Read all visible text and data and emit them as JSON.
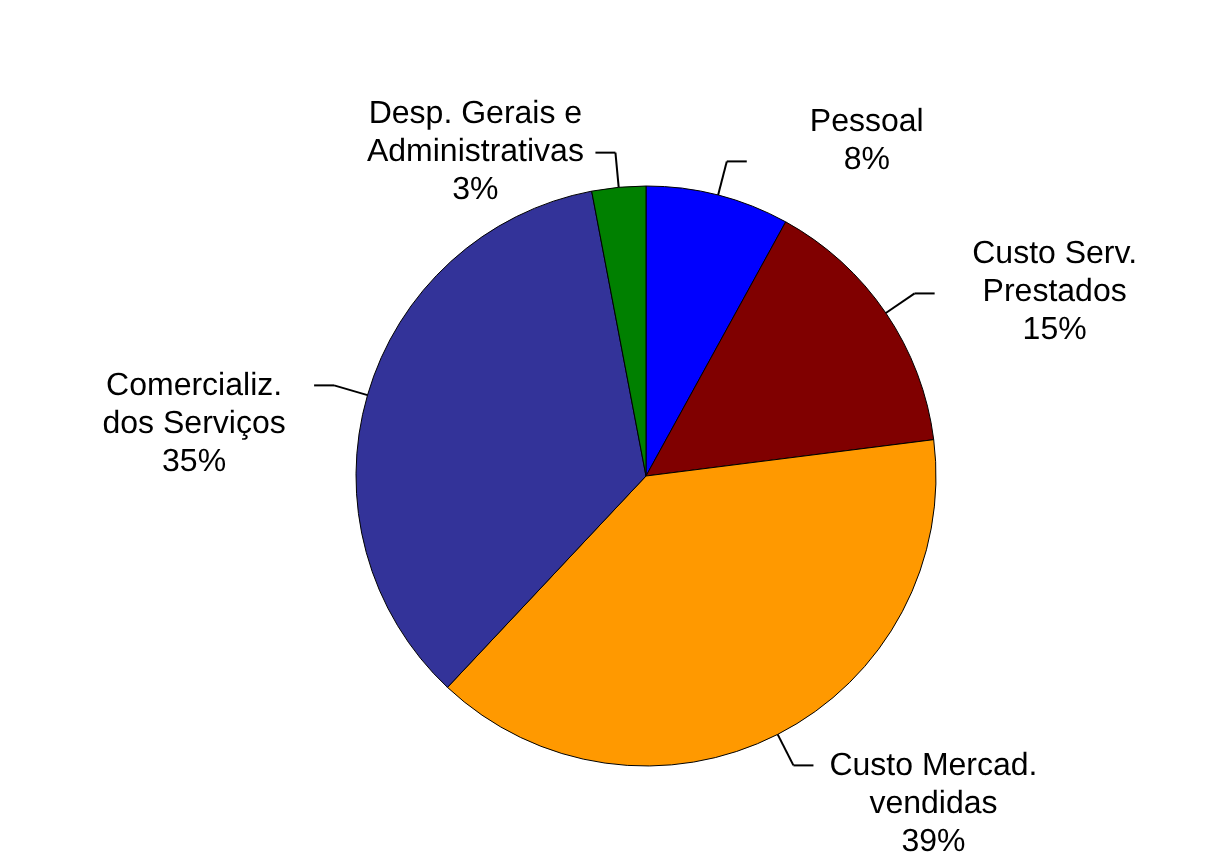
{
  "chart_data": {
    "type": "pie",
    "categories": [
      "Pessoal",
      "Custo Serv. Prestados",
      "Custo Mercad. vendidas",
      "Comercializ. dos Serviços",
      "Desp. Gerais e Administrativas"
    ],
    "values": [
      8,
      15,
      39,
      35,
      3
    ],
    "colors": [
      "#0000ff",
      "#800000",
      "#ff9900",
      "#333399",
      "#008000"
    ],
    "value_labels": [
      "8%",
      "15%",
      "39%",
      "35%",
      "3%"
    ]
  }
}
